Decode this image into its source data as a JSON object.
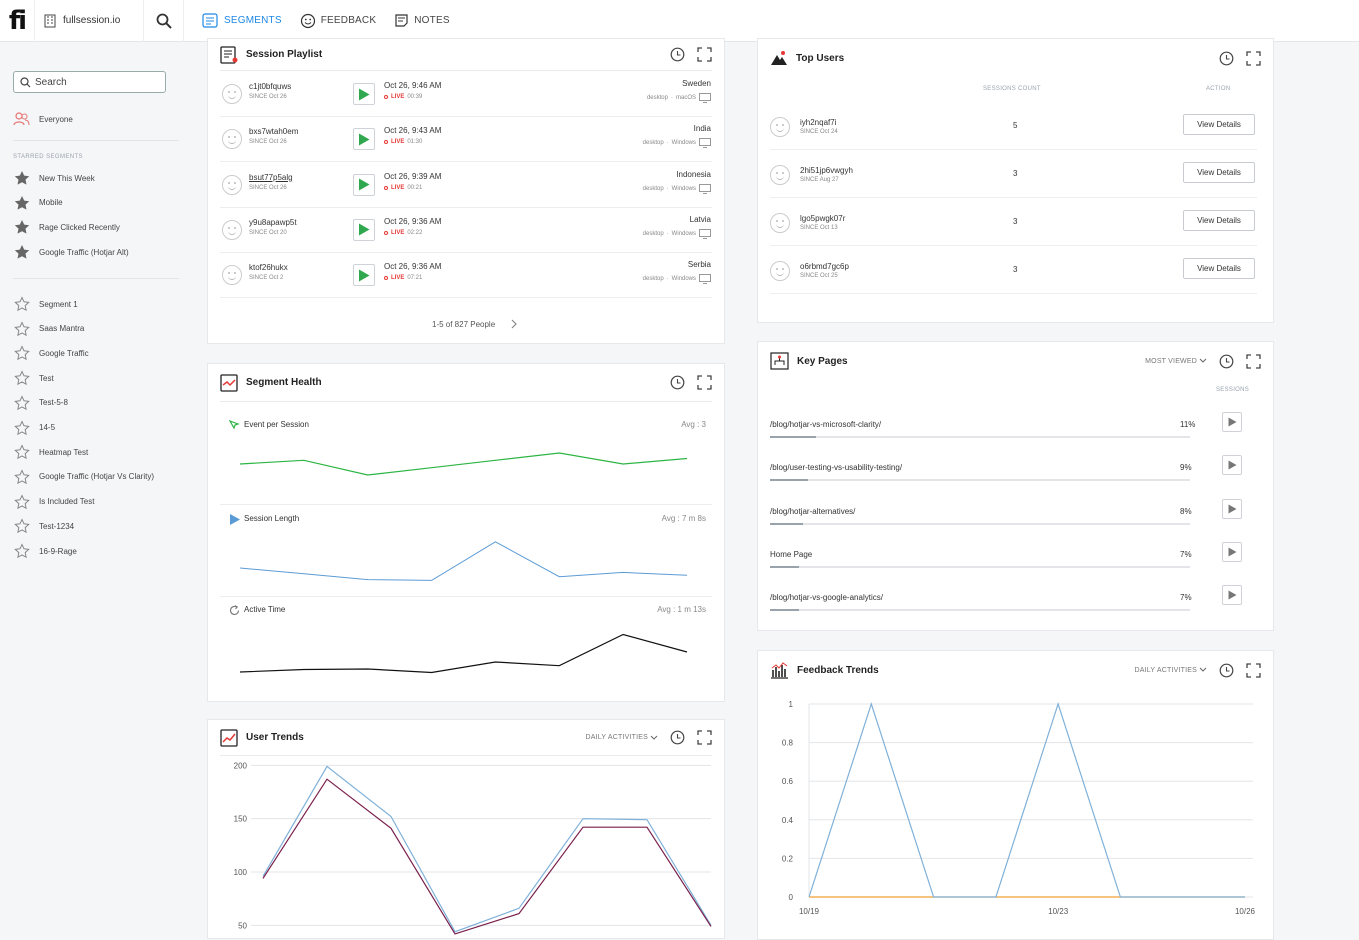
{
  "topbar": {
    "project": "fullsession.io",
    "tabs": [
      {
        "label": "SEGMENTS",
        "active": true
      },
      {
        "label": "FEEDBACK",
        "active": false
      },
      {
        "label": "NOTES",
        "active": false
      }
    ]
  },
  "sidebar": {
    "search_value": "Search",
    "everyone": "Everyone",
    "starred_caption": "STARRED SEGMENTS",
    "starred": [
      "New This Week",
      "Mobile",
      "Rage Clicked Recently",
      "Google Traffic (Hotjar Alt)"
    ],
    "segments": [
      "Segment 1",
      "Saas Mantra",
      "Google Traffic",
      "Test",
      "Test-5-8",
      "14-5",
      "Heatmap Test",
      "Google Traffic (Hotjar Vs Clarity)",
      "Is Included Test",
      "Test-1234",
      "16-9-Rage"
    ]
  },
  "playlist": {
    "title": "Session Playlist",
    "rows": [
      {
        "name": "c1jt0bfquws",
        "since": "SINCE Oct 26",
        "time": "Oct 26, 9:46 AM",
        "live": "LIVE",
        "duration": "00:39",
        "country": "Sweden",
        "device": "desktop",
        "os": "macOS"
      },
      {
        "name": "bxs7wtah0em",
        "since": "SINCE Oct 26",
        "time": "Oct 26, 9:43 AM",
        "live": "LIVE",
        "duration": "01:30",
        "country": "India",
        "device": "desktop",
        "os": "Windows"
      },
      {
        "name": "bsut77p5alg",
        "since": "SINCE Oct 26",
        "time": "Oct 26, 9:39 AM",
        "live": "LIVE",
        "duration": "00:21",
        "country": "Indonesia",
        "device": "desktop",
        "os": "Windows"
      },
      {
        "name": "y9u8apawp5t",
        "since": "SINCE Oct 20",
        "time": "Oct 26, 9:36 AM",
        "live": "LIVE",
        "duration": "02:22",
        "country": "Latvia",
        "device": "desktop",
        "os": "Windows"
      },
      {
        "name": "ktof26hukx",
        "since": "SINCE Oct 2",
        "time": "Oct 26, 9:36 AM",
        "live": "LIVE",
        "duration": "07:21",
        "country": "Serbia",
        "device": "desktop",
        "os": "Windows"
      }
    ],
    "pagination": "1-5 of 827 People"
  },
  "health": {
    "title": "Segment Health",
    "sections": [
      {
        "label": "Event per Session",
        "avg": "Avg : 3",
        "color": "#2db544"
      },
      {
        "label": "Session Length",
        "avg": "Avg : 7 m 8s",
        "color": "#5b9bd5"
      },
      {
        "label": "Active Time",
        "avg": "Avg : 1 m 13s",
        "color": "#111111"
      }
    ],
    "series": [
      [
        2.9,
        3.0,
        2.6,
        2.8,
        3.0,
        3.2,
        2.9,
        3.05
      ],
      [
        5.6,
        5.2,
        4.8,
        4.75,
        7.4,
        5.0,
        5.3,
        5.1
      ],
      [
        1.1,
        1.2,
        1.22,
        1.08,
        1.5,
        1.35,
        2.6,
        1.9
      ]
    ]
  },
  "user_trends": {
    "title": "User Trends",
    "filter": "DAILY ACTIVITIES",
    "chart_data": {
      "type": "line",
      "yticks": [
        50,
        100,
        150,
        200
      ],
      "ylim": [
        40,
        205
      ],
      "series": [
        {
          "values": [
            96,
            199,
            152,
            44,
            66,
            150,
            149,
            50
          ],
          "color": "#7fb1d9"
        },
        {
          "values": [
            94,
            187,
            141,
            42,
            61,
            142,
            142,
            49
          ],
          "color": "#7a1f4a"
        }
      ]
    }
  },
  "top_users": {
    "title": "Top Users",
    "col_sessions": "SESSIONS COUNT",
    "col_action": "ACTION",
    "action_label": "View Details",
    "rows": [
      {
        "name": "iyh2nqaf7i",
        "since": "SINCE Oct 24",
        "count": "5"
      },
      {
        "name": "2hi51jp6vwgyh",
        "since": "SINCE Aug 27",
        "count": "3"
      },
      {
        "name": "lgo5pwgk07r",
        "since": "SINCE Oct 13",
        "count": "3"
      },
      {
        "name": "o6rbmd7gc6p",
        "since": "SINCE Oct 25",
        "count": "3"
      }
    ]
  },
  "key_pages": {
    "title": "Key Pages",
    "filter": "MOST VIEWED",
    "col": "SESSIONS",
    "rows": [
      {
        "path": "/blog/hotjar-vs-microsoft-clarity/",
        "pct": "11%",
        "value": 0.11
      },
      {
        "path": "/blog/user-testing-vs-usability-testing/",
        "pct": "9%",
        "value": 0.09
      },
      {
        "path": "/blog/hotjar-alternatives/",
        "pct": "8%",
        "value": 0.08
      },
      {
        "path": "Home Page",
        "pct": "7%",
        "value": 0.07
      },
      {
        "path": "/blog/hotjar-vs-google-analytics/",
        "pct": "7%",
        "value": 0.07
      }
    ]
  },
  "feedback_trends": {
    "title": "Feedback Trends",
    "filter": "DAILY ACTIVITIES",
    "chart_data": {
      "type": "line",
      "x": [
        "10/19",
        "10/20",
        "10/21",
        "10/22",
        "10/23",
        "10/24",
        "10/25",
        "10/26"
      ],
      "xticks": [
        "10/19",
        "10/23",
        "10/26"
      ],
      "yticks": [
        "0",
        "0.2",
        "0.4",
        "0.6",
        "0.8",
        "1"
      ],
      "ylim": [
        0,
        1
      ],
      "series": [
        {
          "values": [
            0,
            1,
            0,
            0,
            1,
            0,
            0,
            0
          ],
          "color": "#7fb1d9"
        },
        {
          "values": [
            0,
            0,
            0,
            0,
            0,
            0,
            0,
            0
          ],
          "color": "#f0a030"
        }
      ]
    }
  }
}
